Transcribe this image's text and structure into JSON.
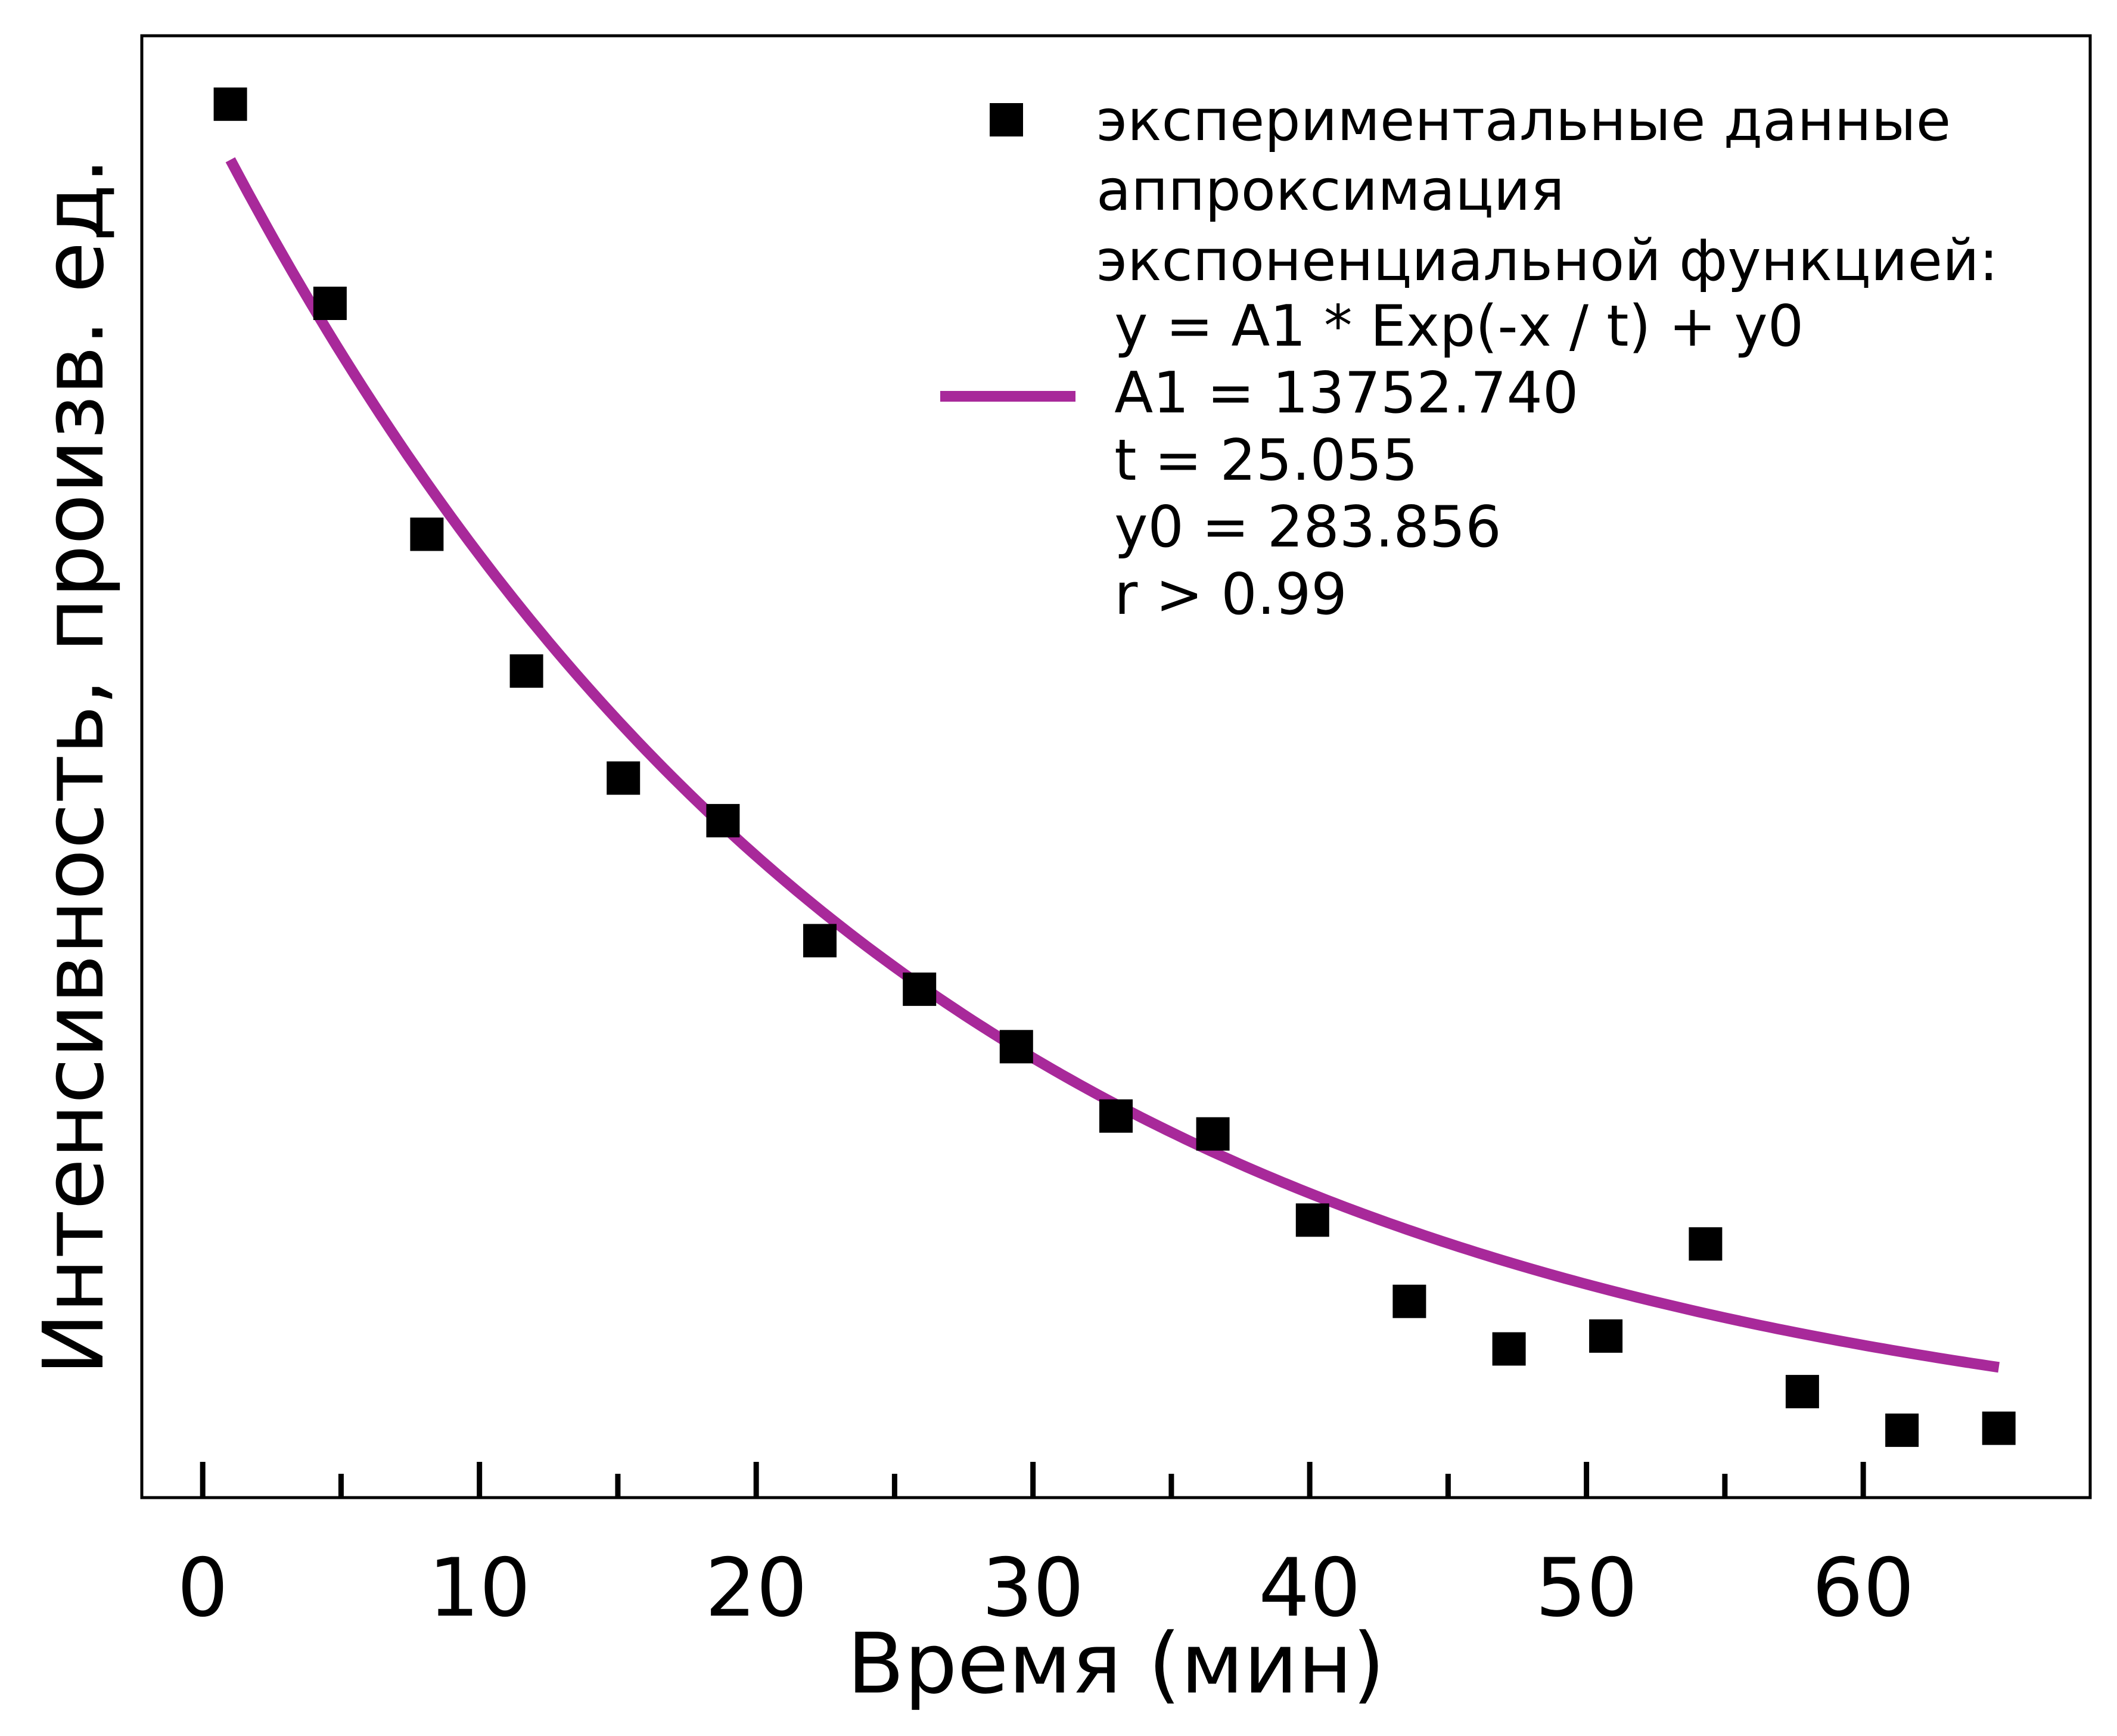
{
  "chart_data": {
    "type": "scatter",
    "xlabel": "Время (мин)",
    "ylabel": "Интенсивность, произв. ед.",
    "xlim": [
      -2.2,
      68.2
    ],
    "ylim": [
      0,
      14750
    ],
    "x_ticks": [
      0,
      10,
      20,
      30,
      40,
      50,
      60
    ],
    "x_minor_ticks": [
      5,
      15,
      25,
      35,
      45,
      55
    ],
    "y_ticks_shown": false,
    "grid": false,
    "legend_position": "top-right",
    "series": [
      {
        "name": "экспериментальные данные",
        "kind": "scatter",
        "marker": "square",
        "color": "#000000",
        "x": [
          1.0,
          4.6,
          8.1,
          11.7,
          15.2,
          18.8,
          22.3,
          25.9,
          29.4,
          33.0,
          36.5,
          40.1,
          43.6,
          47.2,
          50.7,
          54.3,
          57.8,
          61.4,
          64.9
        ],
        "y": [
          14060,
          12050,
          9720,
          8340,
          7260,
          6830,
          5620,
          5130,
          4550,
          3850,
          3670,
          2800,
          1980,
          1500,
          1630,
          2560,
          1070,
          680,
          700
        ]
      },
      {
        "name": "аппроксимация экспоненциальной функцией",
        "kind": "line",
        "color": "#a8299a",
        "equation": "y = A1 * Exp(-x / t) + y0",
        "params": {
          "A1": 13752.74,
          "t": 25.055,
          "y0": 283.856
        },
        "x_range": [
          1.0,
          64.9
        ]
      }
    ],
    "legend": {
      "scatter_label": "экспериментальные данные",
      "fit_label_lines": [
        "аппроксимация",
        "экспоненциальной функцией:",
        " y = A1 * Exp(-x / t) + y0",
        " A1 = 13752.740",
        " t = 25.055",
        " y0 = 283.856",
        " r > 0.99"
      ]
    }
  }
}
